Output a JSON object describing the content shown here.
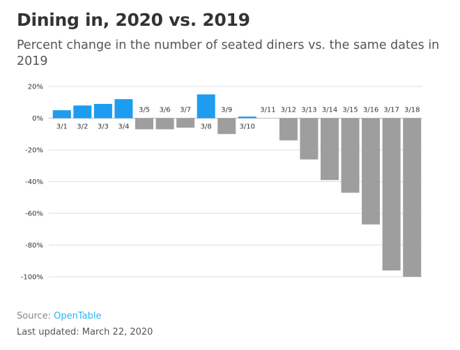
{
  "chart_data": {
    "type": "bar",
    "title": "Dining in, 2020 vs. 2019",
    "subtitle": "Percent change in the number of seated diners vs. the same dates in 2019",
    "categories": [
      "3/1",
      "3/2",
      "3/3",
      "3/4",
      "3/5",
      "3/6",
      "3/7",
      "3/8",
      "3/9",
      "3/10",
      "3/11",
      "3/12",
      "3/13",
      "3/14",
      "3/15",
      "3/16",
      "3/17",
      "3/18"
    ],
    "values": [
      5,
      8,
      9,
      12,
      -7,
      -7,
      -6,
      15,
      -10,
      1,
      0,
      -14,
      -26,
      -39,
      -47,
      -67,
      -96,
      -100
    ],
    "ylim": [
      -100,
      20
    ],
    "yticks": [
      20,
      0,
      -20,
      -40,
      -60,
      -80,
      -100
    ],
    "ytick_labels": [
      "20%",
      "0%",
      "-20%",
      "-40%",
      "-60%",
      "-80%",
      "-100%"
    ],
    "xlabel": "",
    "ylabel": "",
    "grid": true,
    "colors": {
      "positive": "#1e9cf0",
      "negative": "#9e9e9e",
      "grid": "#dddddd",
      "zero_line": "#bbbbbb"
    }
  },
  "footer": {
    "source_label": "Source:",
    "source_name": "OpenTable",
    "updated": "Last updated: March 22, 2020"
  }
}
